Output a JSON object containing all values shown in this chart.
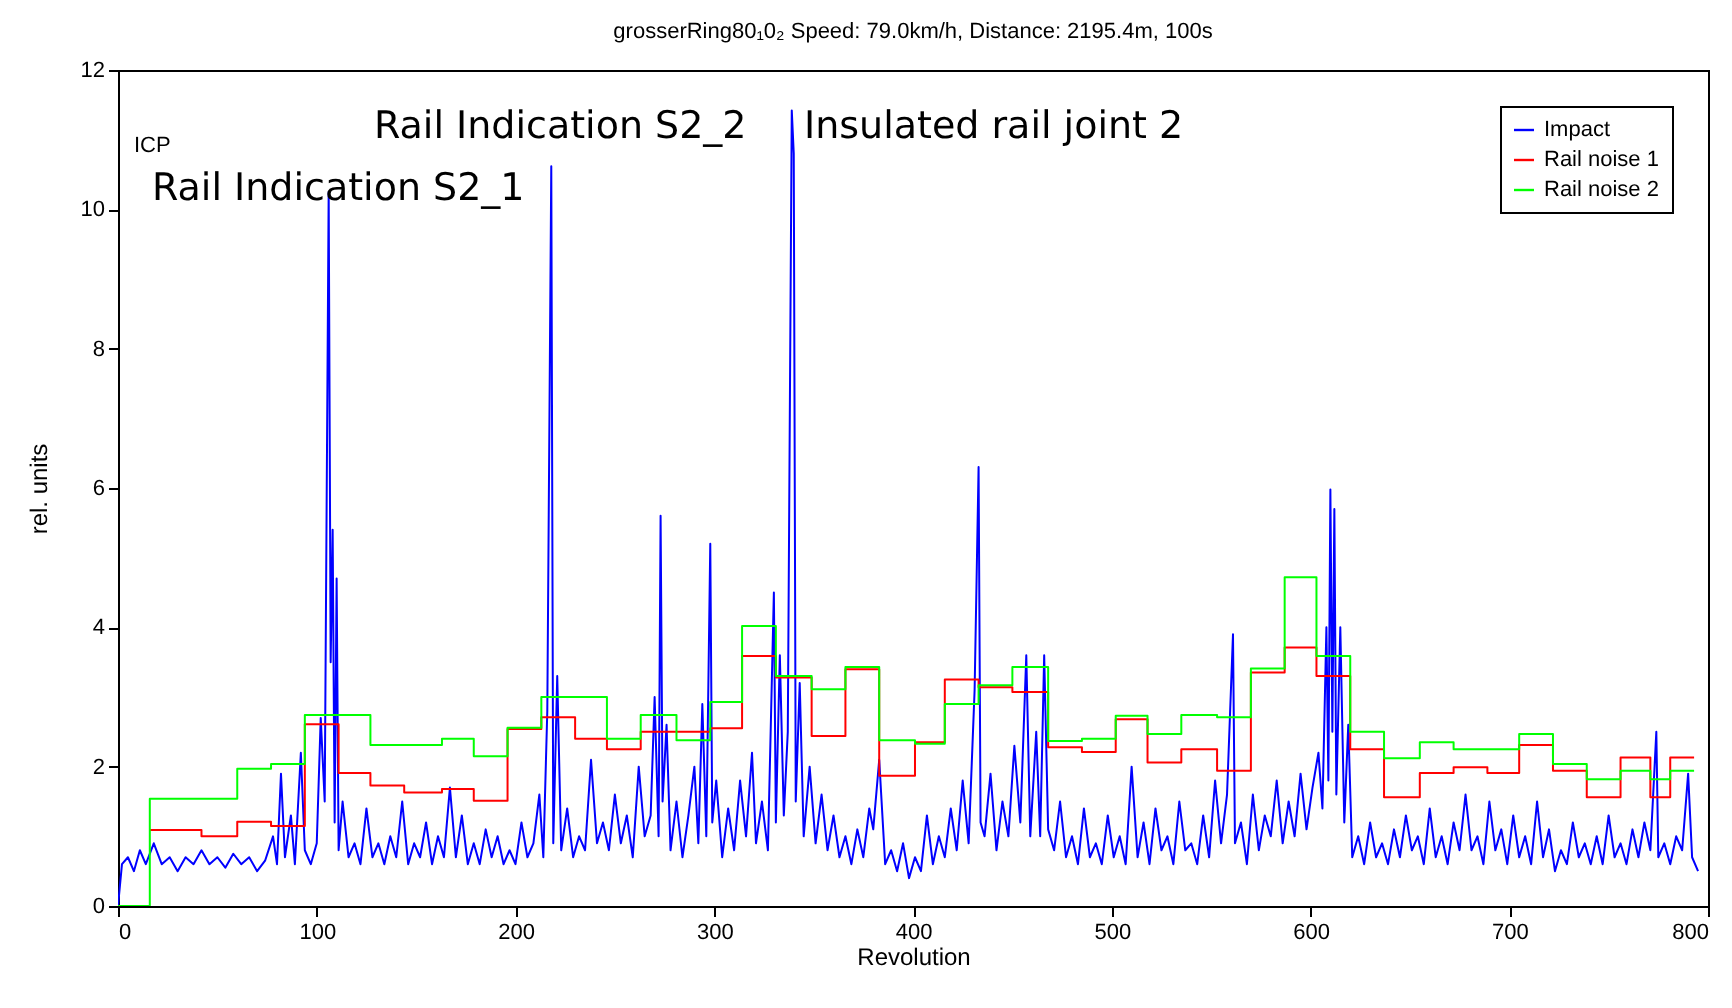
{
  "chart_data": {
    "type": "line",
    "title": "grosserRing80₁0₂  Speed: 79.0km/h, Distance: 2195.4m, 100s",
    "xlabel": "Revolution",
    "ylabel": "rel. units",
    "xlim": [
      0,
      800
    ],
    "xticks": [
      0,
      100,
      200,
      300,
      400,
      500,
      600,
      700,
      800
    ],
    "ylim": [
      0,
      12
    ],
    "yticks": [
      0,
      2,
      4,
      6,
      8,
      10,
      12
    ],
    "grid": false,
    "legend": "top right",
    "marker": "none",
    "line_style": "solid",
    "annotations": [
      "ICP",
      "Rail Indication S2_1",
      "Rail Indication S2_2",
      "Insulated rail joint 2"
    ],
    "series": [
      {
        "name": "Impact",
        "color": "#0000ff",
        "type": "line",
        "x": [
          0,
          2,
          5,
          8,
          11,
          14,
          18,
          22,
          26,
          30,
          34,
          38,
          42,
          46,
          50,
          54,
          58,
          62,
          66,
          70,
          74,
          78,
          80,
          82,
          84,
          87,
          89,
          92,
          94,
          97,
          100,
          102,
          104,
          106,
          107,
          108,
          109,
          110,
          111,
          113,
          116,
          119,
          122,
          125,
          128,
          131,
          134,
          137,
          140,
          143,
          146,
          149,
          152,
          155,
          158,
          161,
          164,
          167,
          170,
          173,
          176,
          179,
          182,
          185,
          188,
          191,
          194,
          197,
          200,
          203,
          206,
          209,
          212,
          214,
          216,
          218,
          219,
          221,
          223,
          226,
          229,
          232,
          235,
          238,
          241,
          244,
          247,
          250,
          253,
          256,
          259,
          262,
          265,
          268,
          270,
          272,
          273,
          274,
          276,
          278,
          281,
          284,
          287,
          290,
          292,
          294,
          296,
          298,
          299,
          301,
          304,
          307,
          310,
          313,
          316,
          319,
          321,
          324,
          327,
          330,
          331,
          333,
          335,
          337,
          339,
          340,
          341,
          343,
          345,
          348,
          351,
          354,
          357,
          360,
          363,
          366,
          369,
          372,
          375,
          378,
          380,
          383,
          386,
          389,
          392,
          395,
          398,
          401,
          404,
          407,
          410,
          413,
          416,
          419,
          422,
          425,
          428,
          431,
          433,
          434,
          436,
          439,
          442,
          445,
          448,
          451,
          454,
          457,
          459,
          462,
          464,
          466,
          468,
          471,
          474,
          477,
          480,
          483,
          486,
          489,
          492,
          495,
          498,
          501,
          504,
          507,
          510,
          513,
          516,
          519,
          522,
          525,
          528,
          531,
          534,
          537,
          540,
          543,
          546,
          549,
          552,
          555,
          558,
          561,
          562,
          565,
          568,
          571,
          574,
          577,
          580,
          583,
          586,
          589,
          592,
          595,
          598,
          601,
          604,
          606,
          608,
          609,
          610,
          611,
          612,
          613,
          615,
          617,
          619,
          621,
          624,
          627,
          630,
          633,
          636,
          639,
          642,
          645,
          648,
          651,
          654,
          657,
          660,
          663,
          666,
          669,
          672,
          675,
          678,
          681,
          684,
          687,
          690,
          693,
          696,
          699,
          702,
          705,
          708,
          711,
          714,
          717,
          720,
          723,
          726,
          729,
          732,
          735,
          738,
          741,
          744,
          747,
          750,
          753,
          756,
          759,
          762,
          765,
          768,
          771,
          774,
          775,
          778,
          781,
          784,
          787,
          790,
          792,
          795
        ],
        "values": [
          0.0,
          0.6,
          0.7,
          0.5,
          0.8,
          0.6,
          0.9,
          0.6,
          0.7,
          0.5,
          0.7,
          0.6,
          0.8,
          0.6,
          0.7,
          0.55,
          0.75,
          0.6,
          0.7,
          0.5,
          0.65,
          1.0,
          0.6,
          1.9,
          0.7,
          1.3,
          0.6,
          2.2,
          0.8,
          0.6,
          0.9,
          2.7,
          1.5,
          10.25,
          3.5,
          5.4,
          1.2,
          4.7,
          0.8,
          1.5,
          0.7,
          0.9,
          0.6,
          1.4,
          0.7,
          0.9,
          0.6,
          1.0,
          0.7,
          1.5,
          0.6,
          0.9,
          0.7,
          1.2,
          0.6,
          1.0,
          0.7,
          1.7,
          0.7,
          1.3,
          0.6,
          0.9,
          0.6,
          1.1,
          0.7,
          1.0,
          0.6,
          0.8,
          0.6,
          1.2,
          0.7,
          0.9,
          1.6,
          0.7,
          2.8,
          10.62,
          0.9,
          3.3,
          0.8,
          1.4,
          0.7,
          1.0,
          0.8,
          2.1,
          0.9,
          1.2,
          0.8,
          1.6,
          0.9,
          1.3,
          0.7,
          2.0,
          1.0,
          1.3,
          3.0,
          1.0,
          5.6,
          1.5,
          2.6,
          0.8,
          1.5,
          0.7,
          1.3,
          2.0,
          0.9,
          2.9,
          1.0,
          5.2,
          1.2,
          1.8,
          0.7,
          1.4,
          0.8,
          1.8,
          1.0,
          2.2,
          0.9,
          1.5,
          0.8,
          4.5,
          1.2,
          3.6,
          1.3,
          2.5,
          11.42,
          10.8,
          1.5,
          3.2,
          1.0,
          2.0,
          0.9,
          1.6,
          0.8,
          1.3,
          0.7,
          1.0,
          0.6,
          1.1,
          0.7,
          1.4,
          1.1,
          2.1,
          0.6,
          0.8,
          0.5,
          0.9,
          0.4,
          0.7,
          0.5,
          1.3,
          0.6,
          1.0,
          0.7,
          1.4,
          0.8,
          1.8,
          0.9,
          3.1,
          6.3,
          1.2,
          1.0,
          1.9,
          0.8,
          1.5,
          1.0,
          2.3,
          1.2,
          3.6,
          1.0,
          2.5,
          1.0,
          3.6,
          1.1,
          0.8,
          1.5,
          0.7,
          1.0,
          0.6,
          1.4,
          0.7,
          0.9,
          0.6,
          1.3,
          0.7,
          1.0,
          0.6,
          2.0,
          0.7,
          1.2,
          0.6,
          1.4,
          0.8,
          1.0,
          0.6,
          1.5,
          0.8,
          0.9,
          0.6,
          1.3,
          0.7,
          1.8,
          0.9,
          1.6,
          3.9,
          0.9,
          1.2,
          0.6,
          1.6,
          0.8,
          1.3,
          1.0,
          1.8,
          0.9,
          1.5,
          1.0,
          1.9,
          1.1,
          1.7,
          2.2,
          1.4,
          4.0,
          1.8,
          5.98,
          2.5,
          5.7,
          1.6,
          4.0,
          1.2,
          2.6,
          0.7,
          1.0,
          0.6,
          1.2,
          0.7,
          0.9,
          0.6,
          1.1,
          0.7,
          1.3,
          0.8,
          1.0,
          0.6,
          1.4,
          0.7,
          1.0,
          0.6,
          1.2,
          0.8,
          1.6,
          0.8,
          1.0,
          0.6,
          1.5,
          0.8,
          1.1,
          0.6,
          1.3,
          0.7,
          1.0,
          0.6,
          1.5,
          0.7,
          1.1,
          0.5,
          0.8,
          0.6,
          1.2,
          0.7,
          0.9,
          0.6,
          1.0,
          0.6,
          1.3,
          0.7,
          0.9,
          0.6,
          1.1,
          0.7,
          1.2,
          0.8,
          2.5,
          0.7,
          0.9,
          0.6,
          1.0,
          0.8,
          1.9,
          0.7,
          0.5
        ]
      },
      {
        "name": "Rail noise 1",
        "color": "#ff0000",
        "type": "step",
        "x": [
          16,
          42,
          60,
          77,
          94,
          111,
          127,
          144,
          163,
          179,
          196,
          213,
          230,
          246,
          263,
          298,
          314,
          331,
          349,
          366,
          383,
          401,
          416,
          433,
          450,
          468,
          485,
          502,
          518,
          535,
          553,
          570,
          587,
          603,
          620,
          637,
          655,
          672,
          689,
          705,
          722,
          739,
          756,
          771,
          781,
          793
        ],
        "values": [
          1.09,
          1.0,
          1.21,
          1.15,
          2.61,
          1.91,
          1.73,
          1.63,
          1.68,
          1.51,
          2.54,
          2.71,
          2.4,
          2.25,
          2.5,
          2.55,
          3.59,
          3.28,
          2.44,
          3.4,
          1.87,
          2.35,
          3.25,
          3.14,
          3.07,
          2.28,
          2.21,
          2.68,
          2.06,
          2.25,
          1.94,
          3.35,
          3.71,
          3.3,
          2.25,
          1.56,
          1.91,
          1.99,
          1.91,
          2.31,
          1.94,
          1.56,
          2.13,
          1.56,
          2.13,
          2.13
        ]
      },
      {
        "name": "Rail noise 2",
        "color": "#00ff00",
        "type": "step",
        "x": [
          0,
          16,
          60,
          77,
          94,
          127,
          163,
          179,
          196,
          213,
          246,
          263,
          281,
          298,
          314,
          331,
          349,
          366,
          383,
          401,
          416,
          433,
          450,
          468,
          485,
          502,
          518,
          535,
          553,
          570,
          587,
          603,
          620,
          637,
          655,
          672,
          705,
          722,
          739,
          756,
          771,
          781,
          793
        ],
        "values": [
          0,
          1.54,
          1.97,
          2.04,
          2.74,
          2.31,
          2.4,
          2.15,
          2.56,
          3.0,
          2.4,
          2.74,
          2.38,
          2.93,
          4.02,
          3.3,
          3.11,
          3.43,
          2.38,
          2.33,
          2.9,
          3.17,
          3.43,
          2.37,
          2.4,
          2.73,
          2.47,
          2.74,
          2.71,
          3.41,
          4.72,
          3.59,
          2.5,
          2.12,
          2.35,
          2.25,
          2.47,
          2.04,
          1.82,
          1.94,
          1.82,
          1.94,
          1.94
        ]
      }
    ]
  }
}
